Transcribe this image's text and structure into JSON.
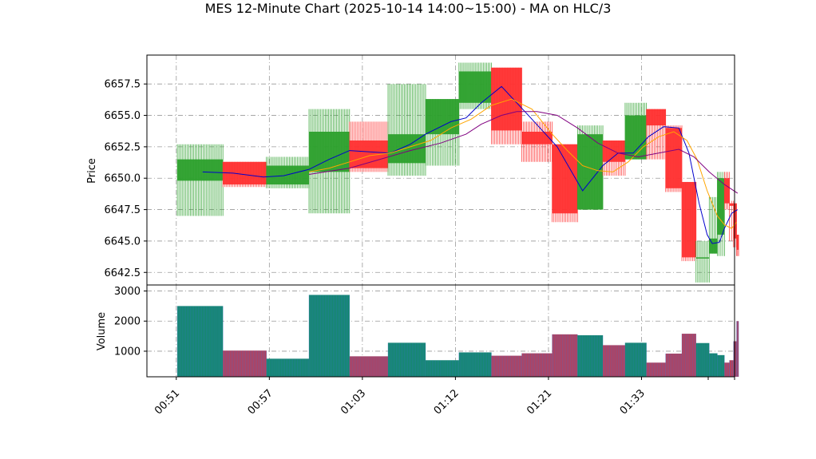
{
  "chart_data": {
    "type": "candlestick",
    "title": "MES 12-Minute Chart (2025-10-14 14:00~15:00) - MA on HLC/3",
    "price_panel": {
      "ylabel": "Price",
      "ylim": [
        6641.5,
        6659.8
      ],
      "yticks": [
        "6642.5",
        "6645.0",
        "6647.5",
        "6650.0",
        "6652.5",
        "6655.0",
        "6657.5"
      ],
      "ytick_values": [
        6642.5,
        6645.0,
        6647.5,
        6650.0,
        6652.5,
        6655.0,
        6657.5
      ],
      "grid": true
    },
    "volume_panel": {
      "ylabel": "Volume",
      "ylim": [
        150,
        3200
      ],
      "yticks": [
        "1000",
        "2000",
        "3000"
      ],
      "ytick_values": [
        1000,
        2000,
        3000
      ],
      "grid": true
    },
    "x_axis": {
      "xlim": [
        0,
        58
      ],
      "ticks": [
        {
          "label": "00:51",
          "pos": 3
        },
        {
          "label": "00:57",
          "pos": 12.5
        },
        {
          "label": "01:03",
          "pos": 22
        },
        {
          "label": "01:12",
          "pos": 31.5
        },
        {
          "label": "01:21",
          "pos": 41
        },
        {
          "label": "01:33",
          "pos": 50.5
        },
        {
          "label": "",
          "pos": 60
        }
      ]
    },
    "colors": {
      "up": "#2ca02c",
      "down": "#ff3030",
      "vol_up": "#138a6a",
      "vol_down": "#b8405a",
      "ma_fast": "#0000cc",
      "ma_mid": "#ffa500",
      "ma_slow": "#800080"
    },
    "candles": [
      {
        "x0": 3.0,
        "x1": 7.5,
        "open": 6649.8,
        "close": 6651.5,
        "high": 6652.7,
        "low": 6647.0,
        "volume": 2500
      },
      {
        "x0": 7.5,
        "x1": 11.8,
        "open": 6651.3,
        "close": 6649.5,
        "high": 6651.3,
        "low": 6649.3,
        "volume": 1020
      },
      {
        "x0": 11.8,
        "x1": 16.0,
        "open": 6649.5,
        "close": 6651.0,
        "high": 6651.7,
        "low": 6649.2,
        "volume": 750
      },
      {
        "x0": 16.0,
        "x1": 20.0,
        "open": 6650.5,
        "close": 6653.7,
        "high": 6655.5,
        "low": 6647.2,
        "volume": 2870
      },
      {
        "x0": 20.0,
        "x1": 23.8,
        "open": 6653.0,
        "close": 6650.8,
        "high": 6654.5,
        "low": 6650.5,
        "volume": 830
      },
      {
        "x0": 23.8,
        "x1": 27.5,
        "open": 6651.2,
        "close": 6653.5,
        "high": 6657.5,
        "low": 6650.2,
        "volume": 1280
      },
      {
        "x0": 27.5,
        "x1": 30.8,
        "open": 6653.5,
        "close": 6656.3,
        "high": 6656.3,
        "low": 6651.0,
        "volume": 700
      },
      {
        "x0": 30.8,
        "x1": 34.0,
        "open": 6656.0,
        "close": 6658.5,
        "high": 6659.2,
        "low": 6655.5,
        "volume": 960
      },
      {
        "x0": 34.0,
        "x1": 37.0,
        "open": 6658.8,
        "close": 6653.8,
        "high": 6658.8,
        "low": 6652.7,
        "volume": 850
      },
      {
        "x0": 37.0,
        "x1": 40.0,
        "open": 6653.7,
        "close": 6652.7,
        "high": 6654.5,
        "low": 6651.3,
        "volume": 930
      },
      {
        "x0": 40.0,
        "x1": 42.5,
        "open": 6652.7,
        "close": 6647.2,
        "high": 6652.7,
        "low": 6646.5,
        "volume": 1560
      },
      {
        "x0": 42.5,
        "x1": 45.0,
        "open": 6647.5,
        "close": 6653.5,
        "high": 6654.2,
        "low": 6647.5,
        "volume": 1530
      },
      {
        "x0": 45.0,
        "x1": 47.2,
        "open": 6653.0,
        "close": 6651.3,
        "high": 6653.0,
        "low": 6650.2,
        "volume": 1200
      },
      {
        "x0": 47.2,
        "x1": 49.3,
        "open": 6651.5,
        "close": 6655.0,
        "high": 6656.0,
        "low": 6651.5,
        "volume": 1280
      },
      {
        "x0": 49.3,
        "x1": 51.2,
        "open": 6655.5,
        "close": 6654.2,
        "high": 6655.5,
        "low": 6651.5,
        "volume": 620
      },
      {
        "x0": 51.2,
        "x1": 52.8,
        "open": 6654.0,
        "close": 6649.2,
        "high": 6654.2,
        "low": 6648.9,
        "volume": 920
      },
      {
        "x0": 52.8,
        "x1": 54.2,
        "open": 6649.7,
        "close": 6643.7,
        "high": 6649.7,
        "low": 6643.4,
        "volume": 1580
      },
      {
        "x0": 54.2,
        "x1": 55.5,
        "open": 6643.7,
        "close": 6643.7,
        "high": 6645.0,
        "low": 6641.7,
        "volume": 1270
      },
      {
        "x0": 55.5,
        "x1": 56.3,
        "open": 6644.0,
        "close": 6645.2,
        "high": 6648.5,
        "low": 6644.0,
        "volume": 930
      },
      {
        "x0": 56.3,
        "x1": 57.0,
        "open": 6645.5,
        "close": 6650.0,
        "high": 6650.5,
        "low": 6643.8,
        "volume": 870
      },
      {
        "x0": 57.0,
        "x1": 57.5,
        "open": 6650.0,
        "close": 6648.0,
        "high": 6650.5,
        "low": 6647.5,
        "volume": 620
      },
      {
        "x0": 57.5,
        "x1": 57.9,
        "open": 6648.0,
        "close": 6647.8,
        "high": 6648.2,
        "low": 6645.0,
        "volume": 700
      },
      {
        "x0": 57.9,
        "x1": 58.2,
        "open": 6648.0,
        "close": 6645.2,
        "high": 6648.0,
        "low": 6644.5,
        "volume": 1330
      },
      {
        "x0": 58.2,
        "x1": 58.4,
        "open": 6645.5,
        "close": 6644.3,
        "high": 6645.5,
        "low": 6643.8,
        "volume": 2000
      }
    ],
    "moving_averages": [
      {
        "color_key": "ma_fast",
        "points": [
          [
            5.5,
            6650.5
          ],
          [
            8.5,
            6650.4
          ],
          [
            11.5,
            6650.1
          ],
          [
            13.5,
            6650.2
          ],
          [
            16.0,
            6650.7
          ],
          [
            18.0,
            6651.5
          ],
          [
            20.0,
            6652.2
          ],
          [
            22.0,
            6652.1
          ],
          [
            24.0,
            6652.0
          ],
          [
            26.0,
            6652.7
          ],
          [
            27.5,
            6653.5
          ],
          [
            30.0,
            6654.5
          ],
          [
            31.5,
            6654.8
          ],
          [
            33.0,
            6656.0
          ],
          [
            35.0,
            6657.3
          ],
          [
            36.5,
            6656.0
          ],
          [
            38.0,
            6654.7
          ],
          [
            40.5,
            6652.5
          ],
          [
            43.0,
            6649.0
          ],
          [
            45.0,
            6651.0
          ],
          [
            46.5,
            6652.0
          ],
          [
            48.0,
            6652.0
          ],
          [
            49.5,
            6653.3
          ],
          [
            51.0,
            6654.1
          ],
          [
            52.5,
            6654.0
          ],
          [
            53.5,
            6652.0
          ],
          [
            54.5,
            6648.0
          ],
          [
            55.3,
            6645.5
          ],
          [
            55.8,
            6644.8
          ],
          [
            56.5,
            6644.9
          ],
          [
            57.0,
            6646.0
          ],
          [
            57.7,
            6647.2
          ],
          [
            58.3,
            6647.5
          ]
        ]
      },
      {
        "color_key": "ma_mid",
        "points": [
          [
            16.0,
            6650.5
          ],
          [
            18.0,
            6650.8
          ],
          [
            20.0,
            6651.3
          ],
          [
            22.0,
            6651.8
          ],
          [
            24.0,
            6652.0
          ],
          [
            26.0,
            6652.5
          ],
          [
            28.0,
            6653.0
          ],
          [
            30.0,
            6654.0
          ],
          [
            32.0,
            6654.7
          ],
          [
            34.0,
            6655.8
          ],
          [
            36.0,
            6656.3
          ],
          [
            38.0,
            6655.5
          ],
          [
            40.0,
            6653.5
          ],
          [
            41.5,
            6652.2
          ],
          [
            43.0,
            6651.0
          ],
          [
            44.5,
            6650.6
          ],
          [
            46.0,
            6650.5
          ],
          [
            47.5,
            6651.3
          ],
          [
            49.0,
            6652.5
          ],
          [
            50.5,
            6653.3
          ],
          [
            52.0,
            6653.7
          ],
          [
            53.3,
            6653.0
          ],
          [
            54.3,
            6651.5
          ],
          [
            55.3,
            6649.0
          ],
          [
            56.3,
            6647.0
          ],
          [
            57.0,
            6646.3
          ],
          [
            57.7,
            6646.0
          ],
          [
            58.2,
            6646.5
          ]
        ]
      },
      {
        "color_key": "ma_slow",
        "points": [
          [
            16.0,
            6650.3
          ],
          [
            20.0,
            6650.8
          ],
          [
            23.0,
            6651.5
          ],
          [
            26.0,
            6652.2
          ],
          [
            29.0,
            6652.8
          ],
          [
            31.5,
            6653.5
          ],
          [
            33.0,
            6654.3
          ],
          [
            35.0,
            6655.0
          ],
          [
            36.5,
            6655.3
          ],
          [
            38.5,
            6655.3
          ],
          [
            40.5,
            6655.0
          ],
          [
            42.5,
            6654.0
          ],
          [
            44.5,
            6652.8
          ],
          [
            46.5,
            6652.0
          ],
          [
            48.5,
            6651.7
          ],
          [
            50.5,
            6652.0
          ],
          [
            52.5,
            6652.3
          ],
          [
            54.0,
            6651.7
          ],
          [
            55.5,
            6650.5
          ],
          [
            57.0,
            6649.5
          ],
          [
            58.3,
            6648.8
          ]
        ]
      }
    ]
  }
}
